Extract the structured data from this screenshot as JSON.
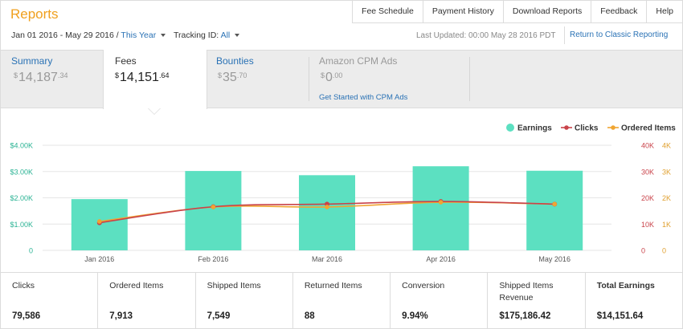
{
  "header": {
    "title": "Reports",
    "links": [
      "Fee Schedule",
      "Payment History",
      "Download Reports",
      "Feedback",
      "Help"
    ]
  },
  "filters": {
    "date_range": "Jan 01 2016 - May 29 2016 /",
    "period": "This Year",
    "tracking_label": "Tracking ID:",
    "tracking_value": "All",
    "last_updated": "Last Updated: 00:00 May 28 2016 PDT",
    "return_link": "Return to Classic Reporting"
  },
  "tabs": [
    {
      "name": "Summary",
      "currency": "$",
      "whole": "14,187",
      "cents": ".34"
    },
    {
      "name": "Fees",
      "currency": "$",
      "whole": "14,151",
      "cents": ".64"
    },
    {
      "name": "Bounties",
      "currency": "$",
      "whole": "35",
      "cents": ".70"
    },
    {
      "name": "Amazon CPM Ads",
      "currency": "$",
      "whole": "0",
      "cents": ".00",
      "link": "Get Started with CPM Ads"
    }
  ],
  "colors": {
    "earnings": "#5ce0c1",
    "clicks": "#c9434a",
    "ordered": "#f0a532",
    "earnings_axis": "#2bb394",
    "clicks_axis": "#c9434a",
    "ordered_axis": "#e0a030"
  },
  "chart_data": {
    "type": "bar",
    "legend": [
      "Earnings",
      "Clicks",
      "Ordered Items"
    ],
    "legend_position": "top-right",
    "categories": [
      "Jan 2016",
      "Feb 2016",
      "Mar 2016",
      "Apr 2016",
      "May 2016"
    ],
    "series": [
      {
        "name": "Earnings",
        "type": "bar",
        "values": [
          1950,
          3020,
          2860,
          3200,
          3030
        ]
      },
      {
        "name": "Clicks",
        "type": "line",
        "values": [
          10500,
          16600,
          17600,
          18600,
          17600
        ]
      },
      {
        "name": "Ordered Items",
        "type": "line",
        "values": [
          1100,
          1650,
          1650,
          1830,
          1760
        ]
      }
    ],
    "y_left": {
      "ticks": [
        "$4.00K",
        "$3.00K",
        "$2.00K",
        "$1.00K",
        "0"
      ],
      "range": [
        0,
        4000
      ]
    },
    "y_right_clicks": {
      "ticks": [
        "40K",
        "30K",
        "20K",
        "10K",
        "0"
      ],
      "range": [
        0,
        40000
      ]
    },
    "y_right_ordered": {
      "ticks": [
        "4K",
        "3K",
        "2K",
        "1K",
        "0"
      ],
      "range": [
        0,
        4000
      ]
    },
    "grid": true
  },
  "stats": [
    {
      "label": "Clicks",
      "value": "79,586"
    },
    {
      "label": "Ordered Items",
      "value": "7,913"
    },
    {
      "label": "Shipped Items",
      "value": "7,549"
    },
    {
      "label": "Returned Items",
      "value": "88"
    },
    {
      "label": "Conversion",
      "value": "9.94%"
    },
    {
      "label": "Shipped Items Revenue",
      "value": "$175,186.42"
    },
    {
      "label": "Total Earnings",
      "value": "$14,151.64"
    }
  ]
}
